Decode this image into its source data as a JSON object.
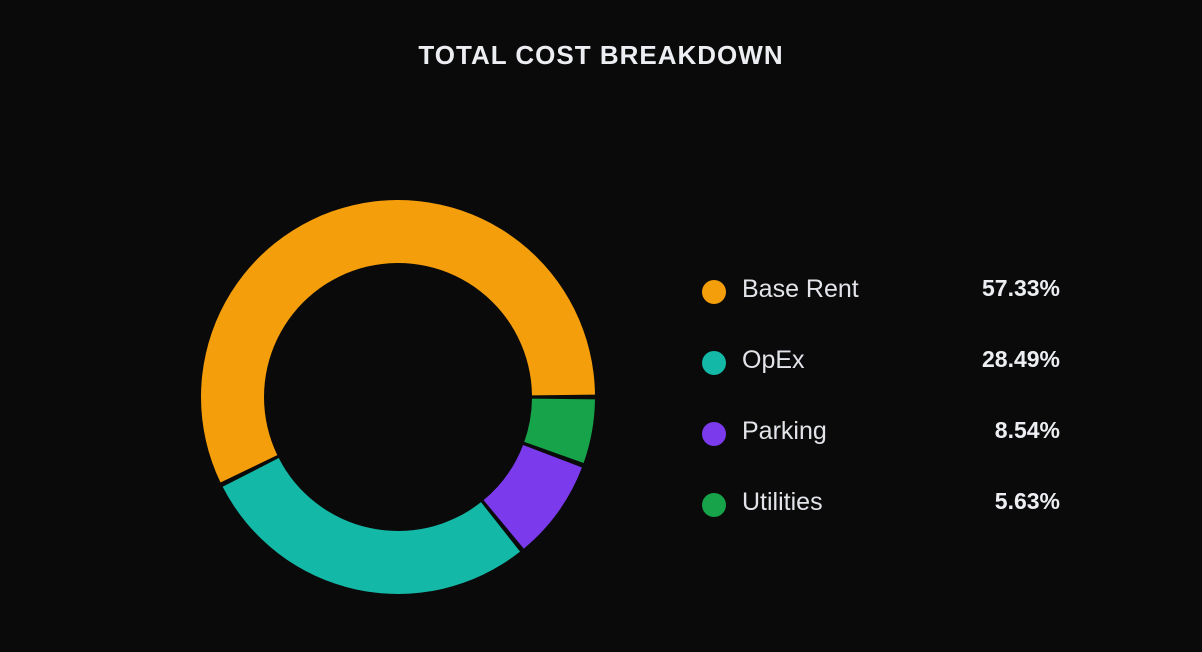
{
  "chart_data": {
    "type": "pie",
    "variant": "donut",
    "title": "TOTAL COST BREAKDOWN",
    "categories": [
      "Base Rent",
      "OpEx",
      "Parking",
      "Utilities"
    ],
    "values": [
      57.33,
      28.49,
      8.54,
      5.63
    ],
    "unit": "%",
    "colors": [
      "#f59e0b",
      "#14b8a6",
      "#7c3aed",
      "#16a34a"
    ],
    "legend_position": "right",
    "start_angle": "3 o'clock, counterclockwise"
  },
  "title": "TOTAL COST BREAKDOWN",
  "legend": [
    {
      "label": "Base Rent",
      "value": "57.33%",
      "color": "#f59e0b"
    },
    {
      "label": "OpEx",
      "value": "28.49%",
      "color": "#14b8a6"
    },
    {
      "label": "Parking",
      "value": "8.54%",
      "color": "#7c3aed"
    },
    {
      "label": "Utilities",
      "value": "5.63%",
      "color": "#16a34a"
    }
  ]
}
